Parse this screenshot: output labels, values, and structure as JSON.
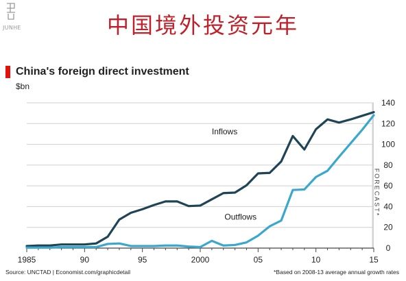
{
  "banner": {
    "title": "中国境外投资元年"
  },
  "logo": {
    "text": "JUNHE"
  },
  "chart_data": {
    "type": "line",
    "title": "China's foreign direct investment",
    "units": "$bn",
    "ylim": [
      0,
      140
    ],
    "y_ticks": [
      "0",
      "20",
      "40",
      "60",
      "80",
      "100",
      "120",
      "140"
    ],
    "y_tick_values": [
      0,
      20,
      40,
      60,
      80,
      100,
      120,
      140
    ],
    "xlim": [
      1985,
      2015
    ],
    "x_tick_values": [
      1985,
      1990,
      1995,
      2000,
      2005,
      2010,
      2015
    ],
    "x_tick_labels": [
      "1985",
      "90",
      "95",
      "2000",
      "05",
      "10",
      "15"
    ],
    "x": [
      1985,
      1986,
      1987,
      1988,
      1989,
      1990,
      1991,
      1992,
      1993,
      1994,
      1995,
      1996,
      1997,
      1998,
      1999,
      2000,
      2001,
      2002,
      2003,
      2004,
      2005,
      2006,
      2007,
      2008,
      2009,
      2010,
      2011,
      2012,
      2013,
      2014,
      2015
    ],
    "series": [
      {
        "name": "Inflows",
        "color": "#1e4456",
        "values": [
          2,
          2.5,
          2.5,
          3.5,
          3.5,
          3.5,
          4.5,
          11,
          27.5,
          34,
          37.5,
          41.5,
          45,
          45,
          40.5,
          41,
          47,
          53,
          53.5,
          60.5,
          72,
          72.5,
          83.5,
          108,
          95,
          114.5,
          124,
          121,
          124,
          127.5,
          131
        ]
      },
      {
        "name": "Outflows",
        "color": "#3aa8cc",
        "values": [
          0.5,
          0.5,
          0.5,
          1,
          1,
          1,
          1,
          4,
          4.5,
          2,
          2,
          2,
          2.5,
          2.5,
          1.5,
          1,
          7,
          2.5,
          3,
          5.5,
          12,
          21,
          26.5,
          56,
          56.5,
          68.5,
          74.5,
          88,
          101,
          114,
          128
        ]
      }
    ],
    "forecast": {
      "label": "FORECAST*",
      "from": 2014.85,
      "to": 2015
    },
    "grid": true,
    "legend": "inline"
  },
  "footer": {
    "source": "Source: UNCTAD | Economist.com/graphicdetail",
    "note": "*Based on 2008-13 average annual growth rates"
  }
}
